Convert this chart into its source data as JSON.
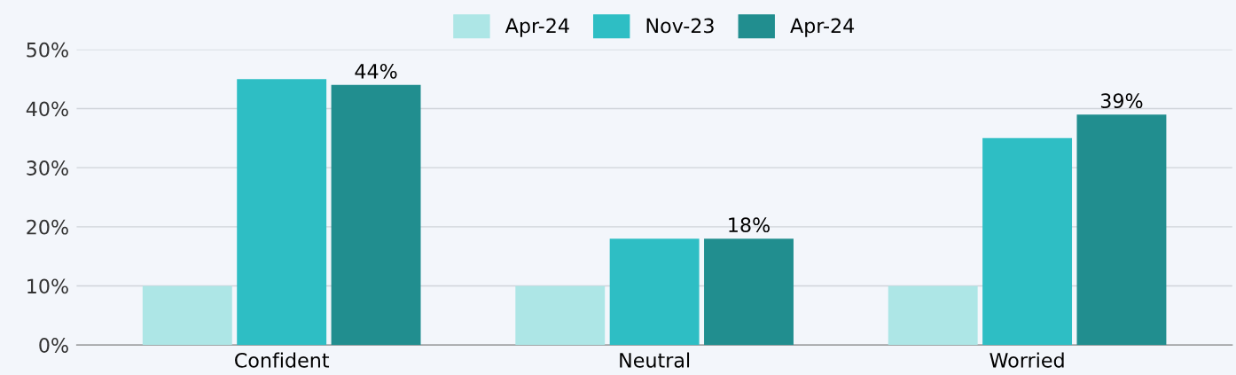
{
  "chart_data": {
    "type": "bar",
    "categories": [
      "Confident",
      "Neutral",
      "Worried"
    ],
    "series": [
      {
        "name": "Apr-24",
        "color": "#ade6e6",
        "values": [
          10,
          10,
          10
        ]
      },
      {
        "name": "Nov-23",
        "color": "#2ebec4",
        "values": [
          45,
          18,
          35
        ]
      },
      {
        "name": "Apr-24",
        "color": "#218e8f",
        "values": [
          44,
          18,
          39
        ],
        "value_labels": [
          "44%",
          "18%",
          "39%"
        ]
      }
    ],
    "ylim": [
      0,
      50
    ],
    "yticks": [
      {
        "value": 0,
        "label": "0%"
      },
      {
        "value": 10,
        "label": "10%"
      },
      {
        "value": 20,
        "label": "20%"
      },
      {
        "value": 30,
        "label": "30%"
      },
      {
        "value": 40,
        "label": "40%"
      },
      {
        "value": 50,
        "label": "50%"
      }
    ],
    "grid": "y",
    "legend": "top"
  }
}
